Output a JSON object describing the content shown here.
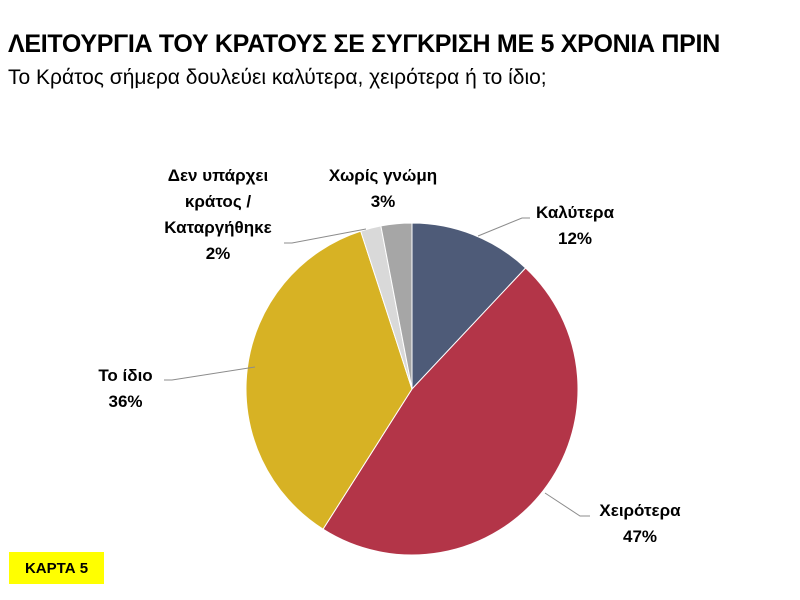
{
  "header": {
    "title": "ΛΕΙΤΟΥΡΓΙΑ ΤΟΥ ΚΡΑΤΟΥΣ ΣΕ ΣΥΓΚΡΙΣΗ ΜΕ 5 ΧΡΟΝΙΑ ΠΡΙΝ",
    "subtitle": "Το Κράτος σήμερα δουλεύει καλύτερα, χειρότερα ή το ίδιο;"
  },
  "labels": {
    "better": {
      "name": "Καλύτερα",
      "pct": "12%"
    },
    "worse": {
      "name": "Χειρότερα",
      "pct": "47%"
    },
    "same": {
      "name": "Το ίδιο",
      "pct": "36%"
    },
    "nostate": {
      "line1": "Δεν υπάρχει",
      "line2": "κράτος /",
      "line3": "Καταργήθηκε",
      "pct": "2%"
    },
    "noopinion": {
      "name": "Χωρίς γνώμη",
      "pct": "3%"
    }
  },
  "footer": {
    "card_label": "ΚΑΡΤΑ 5"
  },
  "colors": {
    "better": "#4e5b78",
    "worse": "#b33548",
    "same": "#d7b224",
    "nostate": "#d9d9d9",
    "noopinion": "#a6a6a6",
    "card_bg": "#ffff00"
  },
  "chart_data": {
    "type": "pie",
    "title": "ΛΕΙΤΟΥΡΓΙΑ ΤΟΥ ΚΡΑΤΟΥΣ ΣΕ ΣΥΓΚΡΙΣΗ ΜΕ 5 ΧΡΟΝΙΑ ΠΡΙΝ",
    "subtitle": "Το Κράτος σήμερα δουλεύει καλύτερα, χειρότερα ή το ίδιο;",
    "categories": [
      "Καλύτερα",
      "Χειρότερα",
      "Το ίδιο",
      "Δεν υπάρχει κράτος / Καταργήθηκε",
      "Χωρίς γνώμη"
    ],
    "values": [
      12,
      47,
      36,
      2,
      3
    ],
    "colors": [
      "#4e5b78",
      "#b33548",
      "#d7b224",
      "#d9d9d9",
      "#a6a6a6"
    ],
    "start_angle": "12 o'clock, clockwise",
    "legend": "none (data labels with leader lines)"
  }
}
